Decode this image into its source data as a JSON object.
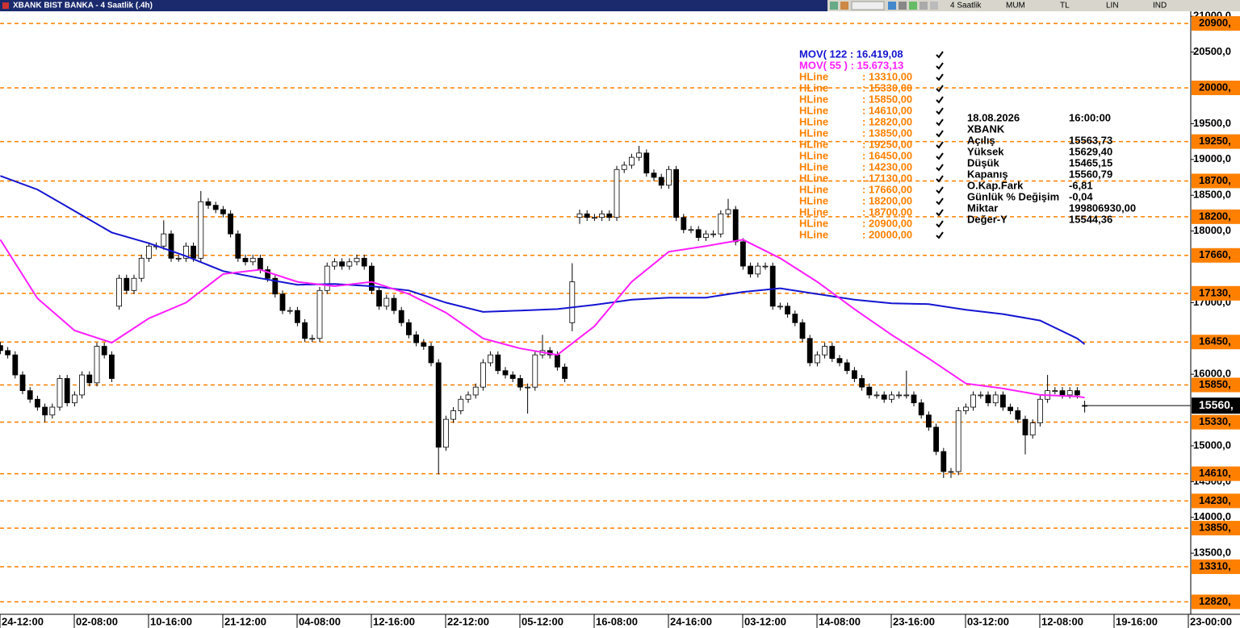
{
  "title": "XBANK BIST BANKA - 4 Saatlik (.4h)",
  "toolbar": [
    "4 Saatlik",
    "MUM",
    "TL",
    "LIN",
    "IND"
  ],
  "info": {
    "date": "18.08.2026",
    "time": "16:00:00",
    "symbol": "XBANK",
    "rows": [
      [
        "Açılış",
        "15563,73"
      ],
      [
        "Yüksek",
        "15629,40"
      ],
      [
        "Düşük",
        "15465,15"
      ],
      [
        "Kapanış",
        "15560,79"
      ],
      [
        "O.Kap.Fark",
        "-6,81"
      ],
      [
        "Günlük % Değişim",
        "-0,04"
      ],
      [
        "Miktar",
        "199806930,00"
      ],
      [
        "Değer-Y",
        "15544,36"
      ]
    ]
  },
  "chart_data": {
    "type": "candlestick",
    "categories": [
      null,
      null,
      null,
      "24-12:00",
      null,
      null,
      null,
      null,
      null,
      null,
      null,
      null,
      null,
      "02-08:00",
      null,
      null,
      null,
      null,
      null,
      null,
      null,
      null,
      null,
      "10-16:00",
      null,
      null,
      null,
      null,
      null,
      null,
      null,
      null,
      null,
      "21-12:00",
      null,
      null,
      null,
      null,
      null,
      null,
      null,
      null,
      null,
      "04-08:00",
      null,
      null,
      null,
      null,
      null,
      null,
      null,
      null,
      null,
      "12-16:00",
      null,
      null,
      null,
      null,
      null,
      null,
      null,
      null,
      null,
      "22-12:00",
      null,
      null,
      null,
      null,
      null,
      null,
      null,
      null,
      null,
      "05-12:00",
      null,
      null,
      null,
      null,
      null,
      null,
      null,
      null,
      null,
      "16-08:00",
      null,
      null,
      null,
      null,
      null,
      null,
      null,
      null,
      null,
      "24-16:00",
      null,
      null,
      null,
      null,
      null,
      null,
      null,
      null,
      null,
      "03-12:00",
      null,
      null,
      null,
      null,
      null,
      null,
      null,
      null,
      null,
      "14-08:00",
      null,
      null,
      null,
      null,
      null,
      null,
      null,
      null,
      null,
      "23-16:00",
      null,
      null,
      null,
      null,
      null,
      null,
      null,
      null,
      null,
      "03-12:00",
      null,
      null,
      null,
      null,
      null,
      null,
      null,
      null,
      null,
      "12-08:00",
      null,
      null,
      null,
      null,
      null,
      null,
      null,
      null,
      null,
      "19-16:00",
      null,
      null,
      null,
      null,
      null,
      null,
      null,
      null,
      null,
      "23-00:00"
    ],
    "candles": [
      [
        16400,
        16450,
        16280,
        16330
      ],
      [
        16330,
        16380,
        16220,
        16270
      ],
      [
        16270,
        16320,
        15940,
        15990
      ],
      [
        15990,
        16040,
        15720,
        15770
      ],
      [
        15770,
        15820,
        15600,
        15650
      ],
      [
        15650,
        15700,
        15490,
        15540
      ],
      [
        15540,
        15590,
        15330,
        15430
      ],
      [
        15430,
        15590,
        15380,
        15540
      ],
      [
        15540,
        15990,
        15490,
        15940
      ],
      [
        15940,
        15990,
        15550,
        15600
      ],
      [
        15600,
        15760,
        15550,
        15710
      ],
      [
        15710,
        16040,
        15660,
        15990
      ],
      [
        15990,
        16040,
        15830,
        15880
      ],
      [
        15880,
        16440,
        15830,
        16390
      ],
      [
        16390,
        16440,
        16220,
        16270
      ],
      [
        16270,
        16320,
        15890,
        15940
      ],
      [
        16950,
        17390,
        16900,
        17340
      ],
      [
        17340,
        17390,
        17120,
        17170
      ],
      [
        17170,
        17390,
        17120,
        17340
      ],
      [
        17340,
        17670,
        17290,
        17620
      ],
      [
        17620,
        17840,
        17570,
        17790
      ],
      [
        17790,
        17840,
        17740,
        17790
      ],
      [
        17790,
        18150,
        17740,
        17960
      ],
      [
        17960,
        18010,
        17570,
        17620
      ],
      [
        17620,
        17670,
        17570,
        17620
      ],
      [
        17620,
        17840,
        17570,
        17790
      ],
      [
        17790,
        17840,
        17570,
        17620
      ],
      [
        17620,
        18560,
        17570,
        18410
      ],
      [
        18410,
        18460,
        18310,
        18360
      ],
      [
        18360,
        18410,
        18250,
        18300
      ],
      [
        18300,
        18350,
        18190,
        18240
      ],
      [
        18240,
        18290,
        17910,
        17960
      ],
      [
        17960,
        18010,
        17570,
        17620
      ],
      [
        17620,
        17670,
        17520,
        17570
      ],
      [
        17570,
        17670,
        17520,
        17620
      ],
      [
        17620,
        17670,
        17410,
        17460
      ],
      [
        17460,
        17510,
        17290,
        17340
      ],
      [
        17340,
        17390,
        17070,
        17120
      ],
      [
        17120,
        17170,
        16840,
        16890
      ],
      [
        16890,
        16940,
        16840,
        16890
      ],
      [
        16890,
        16940,
        16670,
        16720
      ],
      [
        16720,
        16770,
        16450,
        16500
      ],
      [
        16500,
        16550,
        16450,
        16500
      ],
      [
        16500,
        17220,
        16450,
        17170
      ],
      [
        17170,
        17560,
        17120,
        17510
      ],
      [
        17510,
        17620,
        17460,
        17570
      ],
      [
        17570,
        17620,
        17460,
        17510
      ],
      [
        17510,
        17620,
        17460,
        17570
      ],
      [
        17570,
        17670,
        17520,
        17620
      ],
      [
        17620,
        17670,
        17460,
        17510
      ],
      [
        17510,
        17560,
        17120,
        17170
      ],
      [
        17170,
        17220,
        16900,
        16950
      ],
      [
        16950,
        17110,
        16900,
        17060
      ],
      [
        17060,
        17110,
        16840,
        16890
      ],
      [
        16890,
        16940,
        16670,
        16720
      ],
      [
        16720,
        16770,
        16500,
        16550
      ],
      [
        16550,
        16600,
        16390,
        16440
      ],
      [
        16440,
        16490,
        16340,
        16390
      ],
      [
        16390,
        16440,
        16110,
        16160
      ],
      [
        16160,
        16210,
        14600,
        14980
      ],
      [
        14980,
        15420,
        14930,
        15370
      ],
      [
        15370,
        15540,
        15320,
        15490
      ],
      [
        15490,
        15700,
        15440,
        15650
      ],
      [
        15650,
        15760,
        15600,
        15710
      ],
      [
        15710,
        15870,
        15660,
        15820
      ],
      [
        15820,
        16210,
        15770,
        16160
      ],
      [
        16160,
        16320,
        16110,
        16270
      ],
      [
        16270,
        16320,
        16000,
        16050
      ],
      [
        16050,
        16100,
        15940,
        15990
      ],
      [
        15990,
        16040,
        15890,
        15940
      ],
      [
        15940,
        15990,
        15770,
        15820
      ],
      [
        15820,
        15870,
        15450,
        15820
      ],
      [
        15820,
        16320,
        15770,
        16270
      ],
      [
        16270,
        16550,
        16220,
        16330
      ],
      [
        16330,
        16380,
        16220,
        16270
      ],
      [
        16270,
        16320,
        16050,
        16100
      ],
      [
        16100,
        16150,
        15890,
        15940
      ],
      [
        16720,
        17550,
        16600,
        17290
      ],
      [
        18190,
        18300,
        18100,
        18240
      ],
      [
        18240,
        18290,
        18140,
        18190
      ],
      [
        18190,
        18240,
        18140,
        18190
      ],
      [
        18190,
        18290,
        18140,
        18240
      ],
      [
        18240,
        18290,
        18140,
        18190
      ],
      [
        18190,
        18910,
        18140,
        18860
      ],
      [
        18860,
        18970,
        18810,
        18920
      ],
      [
        18920,
        19080,
        18870,
        19030
      ],
      [
        19030,
        19190,
        18980,
        19090
      ],
      [
        19090,
        19140,
        18760,
        18810
      ],
      [
        18810,
        18860,
        18700,
        18750
      ],
      [
        18750,
        18800,
        18590,
        18640
      ],
      [
        18640,
        18910,
        18590,
        18860
      ],
      [
        18860,
        18910,
        18140,
        18190
      ],
      [
        18190,
        18240,
        17970,
        18020
      ],
      [
        18020,
        18070,
        17970,
        18020
      ],
      [
        18020,
        18070,
        17860,
        17910
      ],
      [
        17910,
        18010,
        17860,
        17960
      ],
      [
        17960,
        18010,
        17910,
        17960
      ],
      [
        17960,
        18290,
        17910,
        18240
      ],
      [
        18240,
        18450,
        18190,
        18300
      ],
      [
        18300,
        18350,
        17800,
        17850
      ],
      [
        17850,
        17900,
        17460,
        17510
      ],
      [
        17510,
        17560,
        17350,
        17400
      ],
      [
        17400,
        17560,
        17350,
        17510
      ],
      [
        17510,
        17560,
        17460,
        17510
      ],
      [
        17510,
        17560,
        16900,
        16950
      ],
      [
        16950,
        17000,
        16900,
        16950
      ],
      [
        16950,
        17000,
        16790,
        16840
      ],
      [
        16840,
        16890,
        16670,
        16720
      ],
      [
        16720,
        16770,
        16450,
        16500
      ],
      [
        16500,
        16550,
        16110,
        16160
      ],
      [
        16160,
        16320,
        16110,
        16270
      ],
      [
        16270,
        16440,
        16220,
        16390
      ],
      [
        16390,
        16440,
        16170,
        16220
      ],
      [
        16220,
        16270,
        16110,
        16160
      ],
      [
        16160,
        16210,
        16000,
        16050
      ],
      [
        16050,
        16100,
        15890,
        15940
      ],
      [
        15940,
        15990,
        15770,
        15820
      ],
      [
        15820,
        15870,
        15660,
        15710
      ],
      [
        15710,
        15760,
        15660,
        15710
      ],
      [
        15710,
        15760,
        15600,
        15650
      ],
      [
        15650,
        15760,
        15600,
        15710
      ],
      [
        15710,
        15760,
        15660,
        15710
      ],
      [
        15710,
        16050,
        15660,
        15710
      ],
      [
        15710,
        15760,
        15550,
        15600
      ],
      [
        15600,
        15650,
        15380,
        15430
      ],
      [
        15430,
        15480,
        15210,
        15260
      ],
      [
        15260,
        15310,
        14870,
        14920
      ],
      [
        14920,
        14970,
        14550,
        14640
      ],
      [
        14640,
        14690,
        14550,
        14640
      ],
      [
        14640,
        15540,
        14590,
        15490
      ],
      [
        15490,
        15590,
        15440,
        15540
      ],
      [
        15540,
        15760,
        15490,
        15710
      ],
      [
        15710,
        15760,
        15660,
        15710
      ],
      [
        15710,
        15760,
        15550,
        15600
      ],
      [
        15600,
        15760,
        15550,
        15710
      ],
      [
        15710,
        15760,
        15490,
        15540
      ],
      [
        15540,
        15590,
        15440,
        15490
      ],
      [
        15490,
        15540,
        15320,
        15370
      ],
      [
        15370,
        15420,
        14880,
        15150
      ],
      [
        15150,
        15370,
        15100,
        15320
      ],
      [
        15320,
        15700,
        15270,
        15650
      ],
      [
        15650,
        15990,
        15600,
        15770
      ],
      [
        15770,
        15820,
        15720,
        15770
      ],
      [
        15770,
        15820,
        15660,
        15710
      ],
      [
        15710,
        15820,
        15660,
        15770
      ],
      [
        15770,
        15820,
        15660,
        15710
      ],
      [
        15563.73,
        15629.4,
        15465.15,
        15560.79
      ],
      null,
      null,
      null,
      null,
      null,
      null,
      null,
      null,
      null,
      null,
      null,
      null,
      null,
      null,
      null,
      null,
      null
    ],
    "series": [
      {
        "name": "MOV( 122 : 16.419,08",
        "color": "#1414d2",
        "x": [
          0,
          5,
          10,
          15,
          20,
          25,
          30,
          35,
          40,
          45,
          50,
          55,
          60,
          65,
          70,
          75,
          80,
          85,
          90,
          95,
          100,
          105,
          110,
          115,
          120,
          125,
          130,
          135,
          140,
          145,
          146
        ],
        "values": [
          18770,
          18580,
          18280,
          17980,
          17830,
          17650,
          17440,
          17340,
          17250,
          17260,
          17230,
          17170,
          17000,
          16870,
          16890,
          16910,
          16970,
          17040,
          17070,
          17070,
          17150,
          17200,
          17120,
          17040,
          16990,
          16980,
          16900,
          16840,
          16750,
          16500,
          16419.08
        ]
      },
      {
        "name": "MOV( 55 ) : 15.673,13",
        "color": "#ff1eff",
        "x": [
          0,
          5,
          10,
          15,
          20,
          25,
          30,
          35,
          40,
          45,
          50,
          55,
          60,
          65,
          70,
          75,
          80,
          85,
          90,
          95,
          100,
          105,
          110,
          115,
          120,
          125,
          130,
          135,
          140,
          145,
          146
        ],
        "values": [
          17880,
          17060,
          16610,
          16440,
          16780,
          17000,
          17400,
          17460,
          17290,
          17230,
          17290,
          17120,
          16860,
          16500,
          16360,
          16270,
          16670,
          17290,
          17710,
          17790,
          17880,
          17620,
          17290,
          16910,
          16550,
          16220,
          15870,
          15800,
          15710,
          15690,
          15673.13
        ]
      }
    ],
    "hlines": {
      "name": "HLine",
      "color": "#ff8000",
      "values": [
        13310,
        15330,
        15850,
        14610,
        12820,
        13850,
        19250,
        16450,
        14230,
        17130,
        17660,
        18200,
        18700,
        20900,
        20000
      ],
      "legend_labels": [
        ": 13310,00",
        ": 15330,00",
        ": 15850,00",
        ": 14610,00",
        ": 12820,00",
        ": 13850,00",
        ": 19250,00",
        ": 16450,00",
        ": 14230,00",
        ": 17130,00",
        ": 17660,00",
        ": 18200,00",
        ": 18700,00",
        ": 20900,00",
        ": 20000,00"
      ],
      "axis_labels": [
        "13310,",
        "15330,",
        "15850,",
        "14610,",
        "12820,",
        "13850,",
        "19250,",
        "16450,",
        "14230,",
        "17130,",
        "17660,",
        "18200,",
        "18700,",
        "20900,",
        "20000,"
      ]
    },
    "last_price": {
      "value": 15560.79,
      "label": "15560,"
    },
    "ylim": [
      12646,
      21070
    ],
    "yticks": [
      {
        "value": 21000,
        "label": "21000,0"
      },
      {
        "value": 20500,
        "label": "20500,0"
      },
      {
        "value": 19500,
        "label": "19500,0"
      },
      {
        "value": 19000,
        "label": "19000,0"
      },
      {
        "value": 18500,
        "label": "18500,0"
      },
      {
        "value": 18000,
        "label": "18000,0"
      },
      {
        "value": 17000,
        "label": "17000,0"
      },
      {
        "value": 16000,
        "label": "16000,0"
      },
      {
        "value": 15000,
        "label": "15000,0"
      },
      {
        "value": 14500,
        "label": "14500,0"
      },
      {
        "value": 14000,
        "label": "14000,0"
      },
      {
        "value": 13500,
        "label": "13500,0"
      }
    ],
    "grid": false
  }
}
